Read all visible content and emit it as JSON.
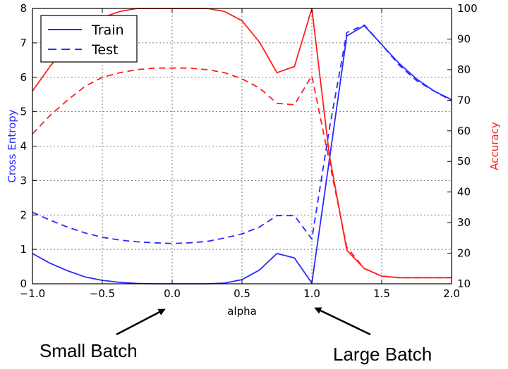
{
  "chart_data": {
    "type": "line",
    "title": "",
    "xlabel": "alpha",
    "ylabel_left": "Cross Entropy",
    "ylabel_right": "Accuracy",
    "xlim": [
      -1.0,
      2.0
    ],
    "ylim_left": [
      0,
      8
    ],
    "ylim_right": [
      10,
      100
    ],
    "x_ticks": [
      -1.0,
      -0.5,
      0.0,
      0.5,
      1.0,
      1.5,
      2.0
    ],
    "x_tick_labels": [
      "−1.0",
      "−0.5",
      "0.0",
      "0.5",
      "1.0",
      "1.5",
      "2.0"
    ],
    "y_left_ticks": [
      0,
      1,
      2,
      3,
      4,
      5,
      6,
      7,
      8
    ],
    "y_left_tick_labels": [
      "0",
      "1",
      "2",
      "3",
      "4",
      "5",
      "6",
      "7",
      "8"
    ],
    "y_right_ticks": [
      10,
      20,
      30,
      40,
      50,
      60,
      70,
      80,
      90,
      100
    ],
    "y_right_tick_labels": [
      "10",
      "20",
      "30",
      "40",
      "50",
      "60",
      "70",
      "80",
      "90",
      "100"
    ],
    "grid": true,
    "legend_position": "top-left",
    "legend": [
      {
        "label": "Train",
        "style": "solid"
      },
      {
        "label": "Test",
        "style": "dashed"
      }
    ],
    "colors": {
      "cross_entropy": "#2b2bff",
      "accuracy": "#ff2020"
    },
    "x": [
      -1.0,
      -0.875,
      -0.75,
      -0.625,
      -0.5,
      -0.375,
      -0.25,
      -0.125,
      0.0,
      0.125,
      0.25,
      0.375,
      0.5,
      0.625,
      0.75,
      0.875,
      1.0,
      1.125,
      1.25,
      1.375,
      1.5,
      1.625,
      1.75,
      1.875,
      2.0
    ],
    "series": [
      {
        "name": "Train",
        "axis": "left",
        "metric": "cross_entropy",
        "style": "solid",
        "values": [
          0.88,
          0.6,
          0.38,
          0.2,
          0.1,
          0.04,
          0.01,
          0.0,
          0.0,
          0.0,
          0.0,
          0.02,
          0.12,
          0.4,
          0.88,
          0.75,
          0.02,
          3.6,
          7.2,
          7.5,
          6.95,
          6.4,
          5.95,
          5.6,
          5.35
        ]
      },
      {
        "name": "Test",
        "axis": "left",
        "metric": "cross_entropy",
        "style": "dashed",
        "values": [
          2.08,
          1.85,
          1.65,
          1.48,
          1.35,
          1.27,
          1.22,
          1.19,
          1.17,
          1.19,
          1.23,
          1.33,
          1.45,
          1.65,
          1.98,
          1.98,
          1.3,
          4.5,
          7.3,
          7.52,
          6.95,
          6.35,
          5.9,
          5.6,
          5.32
        ]
      },
      {
        "name": "Train",
        "axis": "right",
        "metric": "accuracy",
        "style": "solid",
        "values": [
          73,
          81,
          88,
          93,
          97,
          99,
          100,
          100,
          100,
          100,
          100,
          99,
          96,
          89,
          79,
          81,
          100,
          52,
          21,
          15,
          12.5,
          12,
          12,
          12,
          12
        ]
      },
      {
        "name": "Test",
        "axis": "right",
        "metric": "accuracy",
        "style": "dashed",
        "values": [
          59,
          65,
          70,
          74.5,
          77.5,
          79,
          80,
          80.5,
          80.5,
          80.5,
          80,
          79,
          77,
          74,
          69,
          68.5,
          78,
          50,
          22,
          15,
          12.5,
          12,
          12,
          12,
          12
        ]
      }
    ],
    "annotations": [
      {
        "text": "Small Batch",
        "x": 0.0
      },
      {
        "text": "Large Batch",
        "x": 1.0
      }
    ]
  }
}
